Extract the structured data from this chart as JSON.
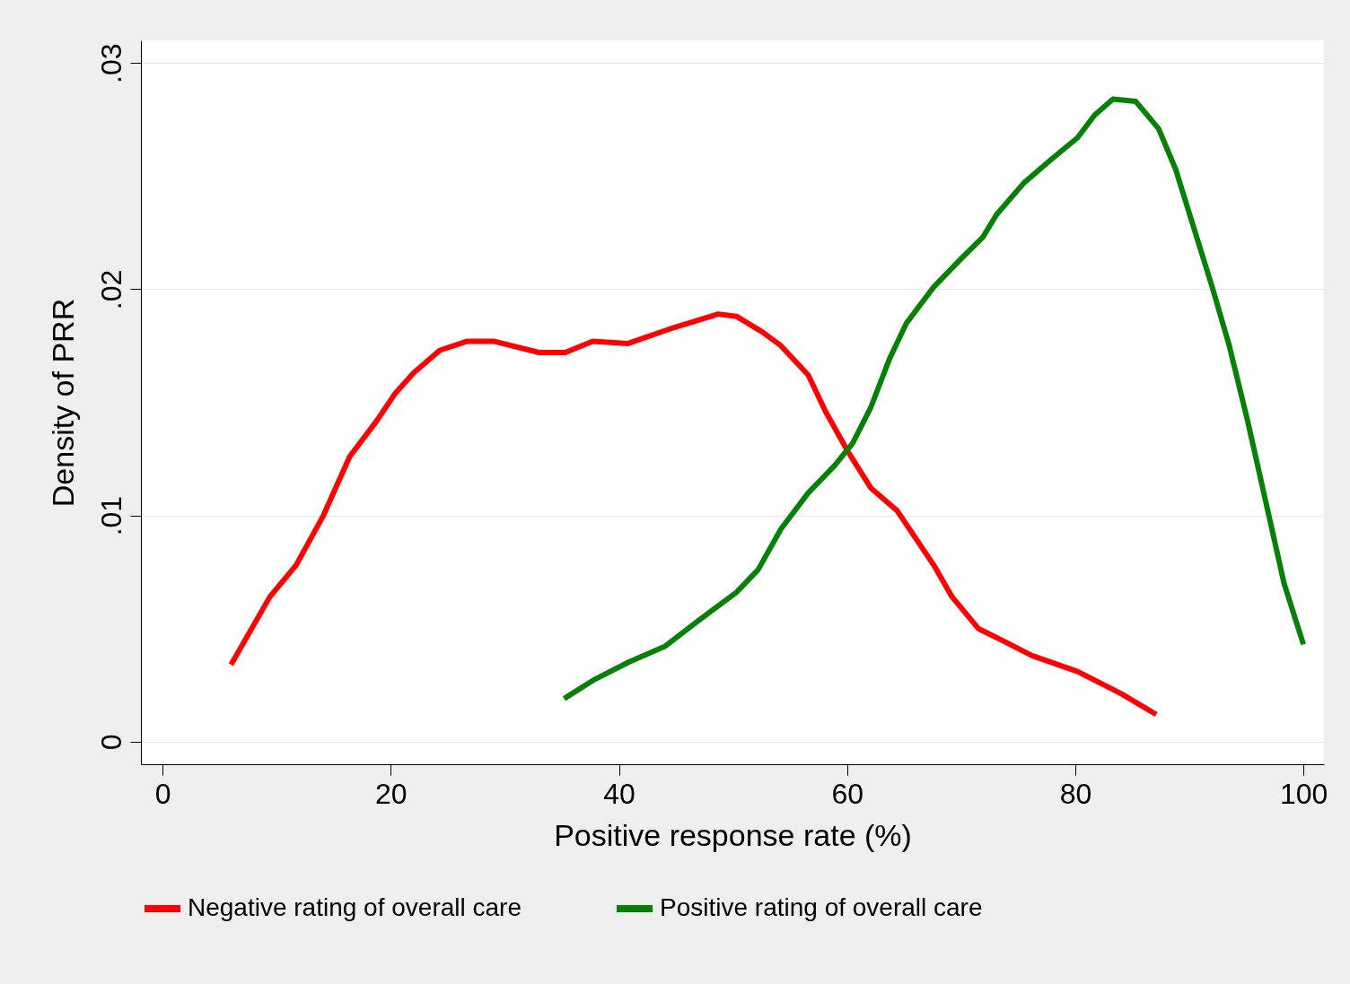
{
  "chart_data": {
    "type": "line",
    "xlabel": "Positive response rate (%)",
    "ylabel": "Density of PRR",
    "xlim": [
      -1.9,
      101.8
    ],
    "ylim": [
      -0.001,
      0.031
    ],
    "xticks": [
      0,
      20,
      40,
      60,
      80,
      100
    ],
    "yticks": [
      0,
      {
        "value": 0.01,
        "label": ".01"
      },
      {
        "value": 0.02,
        "label": ".02"
      },
      {
        "value": 0.03,
        "label": ".03"
      }
    ],
    "grid": "y",
    "legend": "bottom",
    "line_style": "solid",
    "marker": "none",
    "series": [
      {
        "name": "Negative rating of overall care",
        "color": "#ff0000",
        "x": [
          6,
          9.4,
          11.7,
          14.1,
          16.4,
          18.8,
          20.4,
          22,
          24.3,
          26.7,
          29,
          33,
          35.3,
          37.7,
          40.8,
          44.8,
          48.7,
          50.3,
          52.6,
          54.2,
          56.6,
          58.1,
          60.1,
          62.1,
          64.4,
          66,
          67.6,
          69.2,
          71.5,
          73.9,
          76.2,
          80.2,
          84.1,
          87.1
        ],
        "values": [
          0.0034,
          0.0064,
          0.0078,
          0.01,
          0.0126,
          0.0142,
          0.0154,
          0.0163,
          0.0173,
          0.0177,
          0.0177,
          0.0172,
          0.0172,
          0.0177,
          0.0176,
          0.0183,
          0.0189,
          0.0188,
          0.0181,
          0.0175,
          0.0162,
          0.0146,
          0.0128,
          0.0112,
          0.0102,
          0.009,
          0.0078,
          0.0064,
          0.005,
          0.0044,
          0.0038,
          0.0031,
          0.0021,
          0.0012
        ]
      },
      {
        "name": "Positive rating of overall care",
        "color": "#078007",
        "x": [
          35.2,
          37.7,
          40.8,
          44,
          47.1,
          50.3,
          52.2,
          54.2,
          56.6,
          58.9,
          60.5,
          62.1,
          63.7,
          65.2,
          67.6,
          69.9,
          71.9,
          73.1,
          75.5,
          77.8,
          80.2,
          81.7,
          83.3,
          85.3,
          87.3,
          88.8,
          90.4,
          92,
          93.5,
          95.1,
          96.7,
          98.3,
          100
        ],
        "values": [
          0.0019,
          0.0027,
          0.0035,
          0.0042,
          0.0054,
          0.0066,
          0.0076,
          0.0094,
          0.011,
          0.0122,
          0.0132,
          0.0148,
          0.0169,
          0.0185,
          0.0201,
          0.0213,
          0.0223,
          0.0233,
          0.0247,
          0.0257,
          0.0267,
          0.0277,
          0.0284,
          0.0283,
          0.0271,
          0.0253,
          0.0227,
          0.0201,
          0.0175,
          0.0142,
          0.0106,
          0.007,
          0.0043
        ]
      }
    ]
  }
}
